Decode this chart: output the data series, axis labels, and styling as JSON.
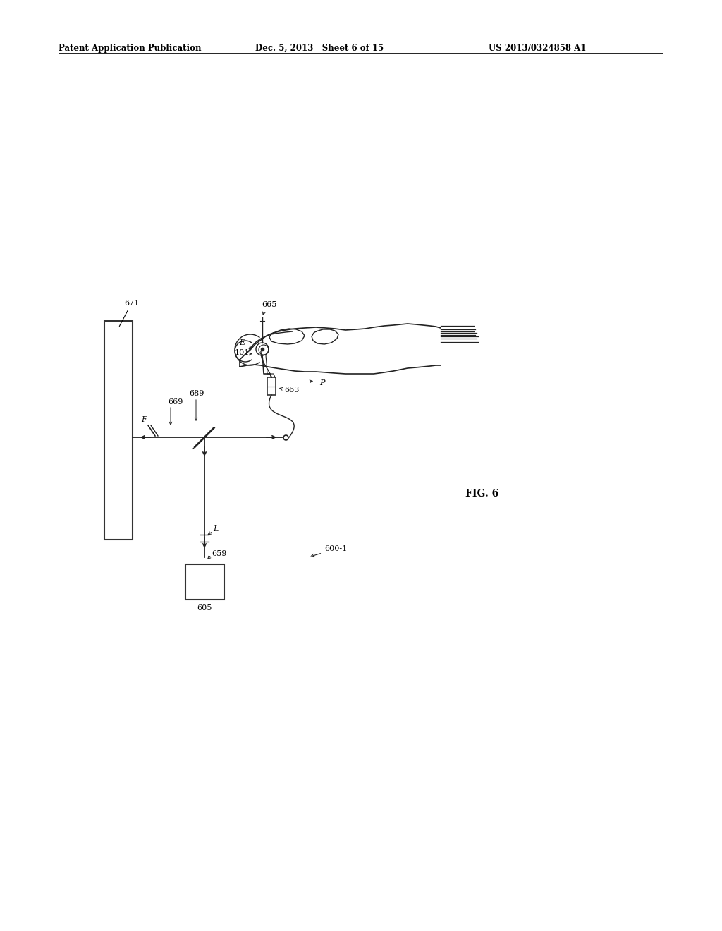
{
  "background_color": "#ffffff",
  "header_left": "Patent Application Publication",
  "header_center": "Dec. 5, 2013   Sheet 6 of 15",
  "header_right": "US 2013/0324858 A1",
  "fig_label": "FIG. 6",
  "diagram_label": "600-1"
}
